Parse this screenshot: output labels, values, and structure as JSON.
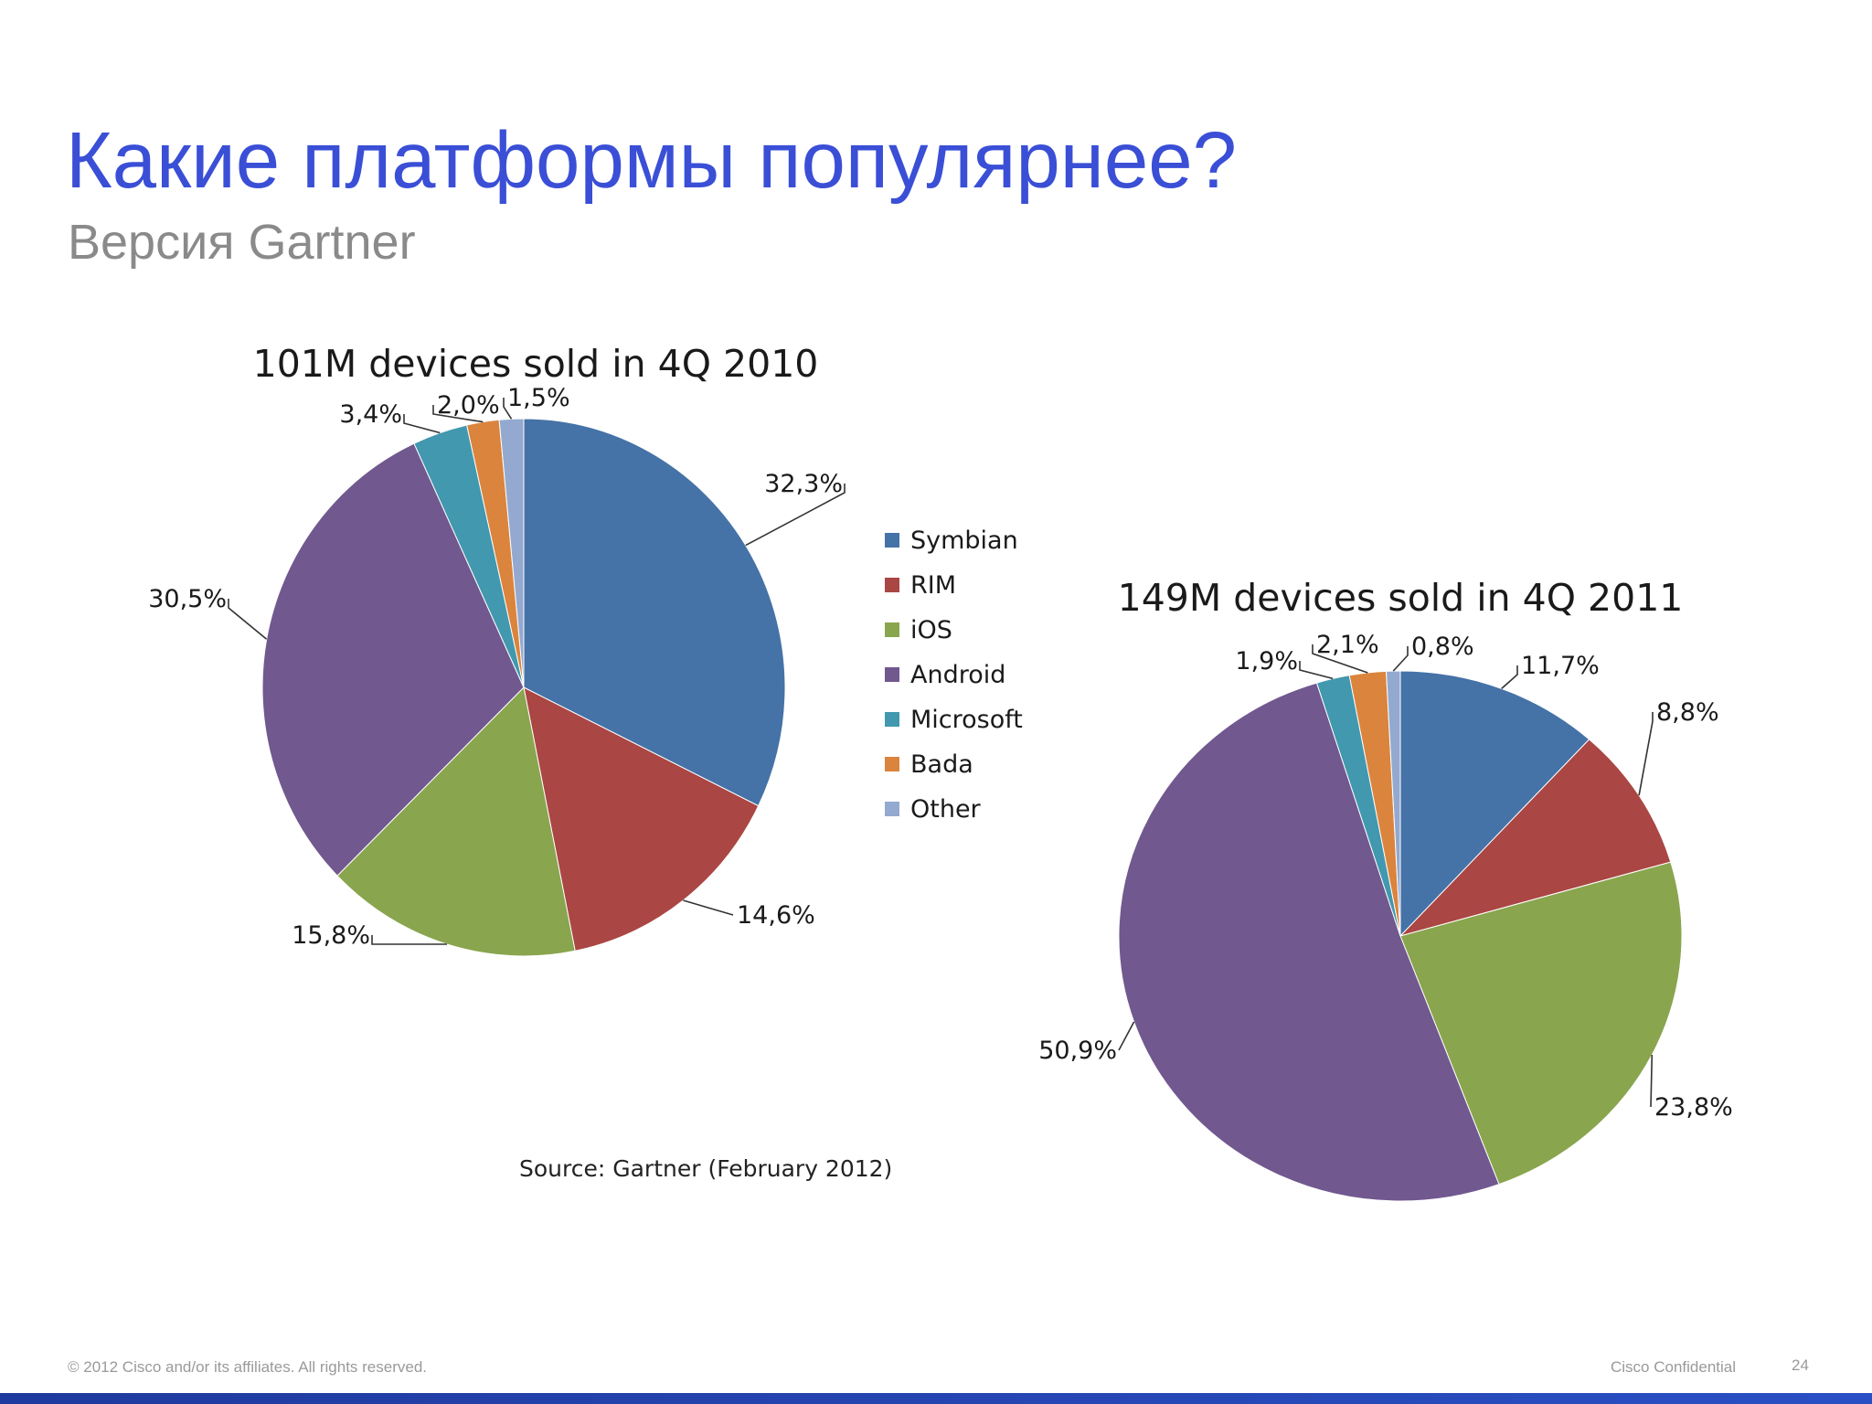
{
  "slide": {
    "title": "Какие платформы популярнее?",
    "subtitle": "Версия Gartner",
    "source": "Source: Gartner (February 2012)",
    "footer_left": "© 2012 Cisco and/or its affiliates. All rights reserved.",
    "footer_right": "Cisco Confidential",
    "page_number": "24"
  },
  "legend": {
    "position": "between-charts",
    "items": [
      {
        "name": "Symbian",
        "color": "#4572a7"
      },
      {
        "name": "RIM",
        "color": "#aa4643"
      },
      {
        "name": "iOS",
        "color": "#89a54e"
      },
      {
        "name": "Android",
        "color": "#71588f"
      },
      {
        "name": "Microsoft",
        "color": "#4198af"
      },
      {
        "name": "Bada",
        "color": "#db843d"
      },
      {
        "name": "Other",
        "color": "#93a9cf"
      }
    ]
  },
  "chart_data": [
    {
      "type": "pie",
      "title": "101M devices sold in 4Q 2010",
      "categories": [
        "Symbian",
        "RIM",
        "iOS",
        "Android",
        "Microsoft",
        "Bada",
        "Other"
      ],
      "values": [
        32.3,
        14.6,
        15.8,
        30.5,
        3.4,
        2.0,
        1.5
      ],
      "labels": [
        "32,3%",
        "14,6%",
        "15,8%",
        "30,5%",
        "3,4%",
        "2,0%",
        "1,5%"
      ]
    },
    {
      "type": "pie",
      "title": "149M devices sold in 4Q 2011",
      "categories": [
        "Symbian",
        "RIM",
        "iOS",
        "Android",
        "Microsoft",
        "Bada",
        "Other"
      ],
      "values": [
        11.7,
        8.8,
        23.8,
        50.9,
        1.9,
        2.1,
        0.8
      ],
      "labels": [
        "11,7%",
        "8,8%",
        "23,8%",
        "50,9%",
        "1,9%",
        "2,1%",
        "0,8%"
      ]
    }
  ]
}
